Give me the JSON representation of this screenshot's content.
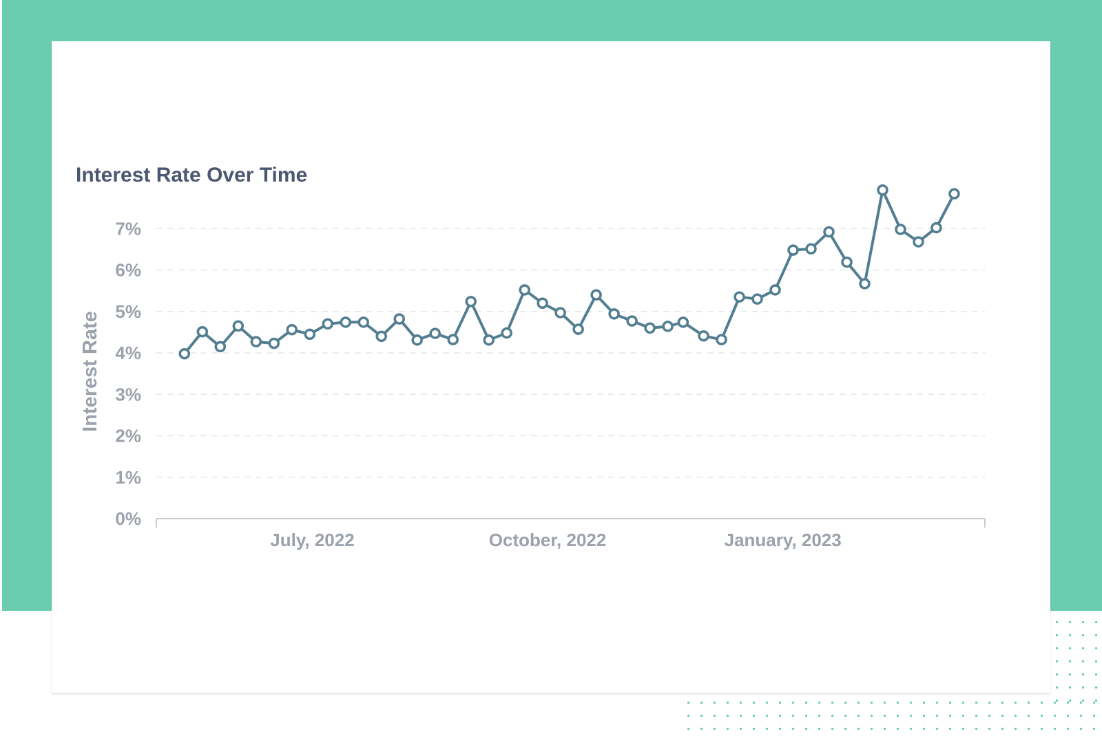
{
  "colors": {
    "backdrop": "#6acdaf",
    "line": "#537e91",
    "marker_fill": "#ffffff",
    "grid": "#e4e6ea",
    "axis": "#c9cdd3",
    "tick_text": "#9ba2ac",
    "title_text": "#4b5670"
  },
  "chart_data": {
    "type": "line",
    "title": "Interest Rate Over Time",
    "xlabel": "",
    "ylabel": "Interest Rate",
    "x": [
      "2022-05-12",
      "2022-05-19",
      "2022-05-26",
      "2022-06-02",
      "2022-06-09",
      "2022-06-16",
      "2022-06-23",
      "2022-06-30",
      "2022-07-07",
      "2022-07-14",
      "2022-07-21",
      "2022-07-28",
      "2022-08-04",
      "2022-08-11",
      "2022-08-18",
      "2022-08-25",
      "2022-09-01",
      "2022-09-08",
      "2022-09-15",
      "2022-09-22",
      "2022-09-29",
      "2022-10-06",
      "2022-10-13",
      "2022-10-20",
      "2022-10-27",
      "2022-11-03",
      "2022-11-10",
      "2022-11-17",
      "2022-11-23",
      "2022-12-01",
      "2022-12-08",
      "2022-12-15",
      "2022-12-22",
      "2022-12-29",
      "2023-01-05",
      "2023-01-12",
      "2023-01-19",
      "2023-01-26",
      "2023-02-02",
      "2023-02-09",
      "2023-02-16",
      "2023-02-23",
      "2023-03-02",
      "2023-03-09"
    ],
    "series": [
      {
        "values": [
          3.98,
          4.51,
          4.15,
          4.65,
          4.27,
          4.23,
          4.56,
          4.45,
          4.7,
          4.74,
          4.74,
          4.4,
          4.82,
          4.31,
          4.47,
          4.32,
          5.24,
          4.31,
          4.48,
          5.52,
          5.2,
          4.97,
          4.57,
          5.4,
          4.94,
          4.77,
          4.6,
          4.64,
          4.74,
          4.41,
          4.32,
          5.35,
          5.3,
          5.52,
          6.48,
          6.51,
          6.92,
          6.19,
          5.67,
          7.93,
          6.98,
          6.68,
          7.02,
          7.84
        ]
      }
    ],
    "y_ticks": [
      "0%",
      "1%",
      "2%",
      "3%",
      "4%",
      "5%",
      "6%",
      "7%"
    ],
    "y_tick_values": [
      0,
      1,
      2,
      3,
      4,
      5,
      6,
      7
    ],
    "ylim": [
      0,
      8.2
    ],
    "x_tick_labels": [
      "July, 2022",
      "October, 2022",
      "January, 2023"
    ],
    "x_tick_dates": [
      "2022-07-01",
      "2022-10-01",
      "2023-01-01"
    ],
    "xlim": [
      "2022-05-01",
      "2023-03-21"
    ],
    "grid": true,
    "grid_style": "dashed-horizontal",
    "legend": "none",
    "markers": "hollow-circle"
  }
}
